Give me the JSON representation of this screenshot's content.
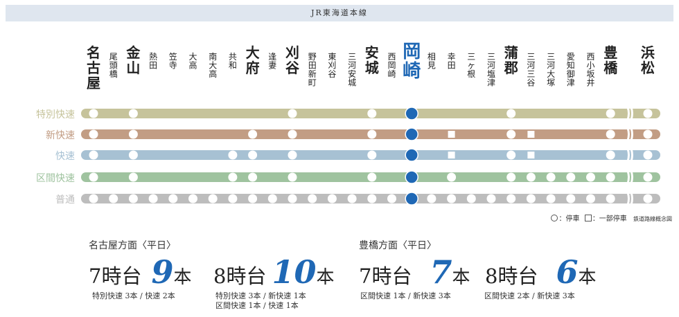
{
  "title": "JR東海道本線",
  "colors": {
    "tokubetsu": "#c6c39b",
    "shin": "#c29d84",
    "kaisoku": "#a7c1d3",
    "kukan": "#9fc39f",
    "futsu": "#bdbdbd",
    "okazaki": "#1f68b5",
    "count": "#1f68b5"
  },
  "stations": [
    {
      "name": "名古屋",
      "major": true
    },
    {
      "name": "尾頭橋",
      "major": false
    },
    {
      "name": "金山",
      "major": true
    },
    {
      "name": "熱田",
      "major": false
    },
    {
      "name": "笠寺",
      "major": false
    },
    {
      "name": "大高",
      "major": false
    },
    {
      "name": "南大高",
      "major": false
    },
    {
      "name": "共和",
      "major": false
    },
    {
      "name": "大府",
      "major": true
    },
    {
      "name": "逢妻",
      "major": false
    },
    {
      "name": "刈谷",
      "major": true
    },
    {
      "name": "野田新町",
      "major": false
    },
    {
      "name": "東刈谷",
      "major": false
    },
    {
      "name": "三河安城",
      "major": false
    },
    {
      "name": "安城",
      "major": true
    },
    {
      "name": "西岡崎",
      "major": false
    },
    {
      "name": "岡崎",
      "major": true,
      "highlight": true
    },
    {
      "name": "相見",
      "major": false
    },
    {
      "name": "幸田",
      "major": false
    },
    {
      "name": "三ヶ根",
      "major": false
    },
    {
      "name": "三河塩津",
      "major": false
    },
    {
      "name": "蒲郡",
      "major": true
    },
    {
      "name": "三河三谷",
      "major": false
    },
    {
      "name": "三河大塚",
      "major": false
    },
    {
      "name": "愛知御津",
      "major": false
    },
    {
      "name": "西小坂井",
      "major": false
    },
    {
      "name": "豊橋",
      "major": true
    },
    {
      "name": "浜松",
      "major": true
    }
  ],
  "lines": [
    {
      "name": "特別快速",
      "color_key": "tokubetsu",
      "stops": "O.O.......O...O.O....O....OO"
    },
    {
      "name": "新快速",
      "color_key": "shin",
      "stops": "O.O.....O.O...O.O.S..OS...OO"
    },
    {
      "name": "快速",
      "color_key": "kaisoku",
      "stops": "O.O....OO.O...O.O.S..OS...OO"
    },
    {
      "name": "区間快速",
      "color_key": "kukan",
      "stops": "O.O....OO.O...O.O.O..OOOOOOO"
    },
    {
      "name": "普通",
      "color_key": "futsu",
      "stops": "OOOOOOOOOOOOOOOOOOOOOOOOOOOO"
    }
  ],
  "legend": {
    "stop_label": "：停車",
    "partial_label": "：一部停車",
    "note": "鉄道路線概念図"
  },
  "frequency": [
    {
      "direction": "名古屋方面〈平日〉",
      "slots": [
        {
          "hour": "7時台",
          "count": "9",
          "unit": "本",
          "breakdown": [
            "特別快速 3本 / 快速 2本"
          ]
        },
        {
          "hour": "8時台",
          "count": "10",
          "unit": "本",
          "breakdown": [
            "特別快速 3本 / 新快速 1本",
            "区間快速 1本 / 快速 1本"
          ]
        }
      ]
    },
    {
      "direction": "豊橋方面〈平日〉",
      "slots": [
        {
          "hour": "7時台",
          "count": "7",
          "unit": "本",
          "breakdown": [
            "区間快速 1本 / 新快速 3本"
          ]
        },
        {
          "hour": "8時台",
          "count": "6",
          "unit": "本",
          "breakdown": [
            "区間快速 2本 / 新快速 3本"
          ]
        }
      ]
    }
  ]
}
